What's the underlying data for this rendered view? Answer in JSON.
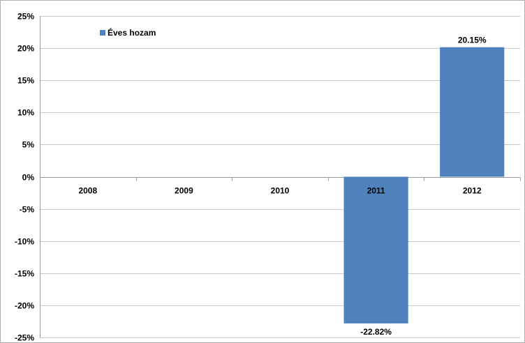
{
  "chart_data": {
    "type": "bar",
    "categories": [
      "2008",
      "2009",
      "2010",
      "2011",
      "2012"
    ],
    "series": [
      {
        "name": "Éves hozam",
        "values": [
          null,
          null,
          null,
          -22.82,
          20.15
        ],
        "color": "#4F81BD"
      }
    ],
    "data_labels": [
      "",
      "",
      "",
      "-22.82%",
      "20.15%"
    ],
    "ylim": [
      -25,
      25
    ],
    "yticks": [
      -25,
      -20,
      -15,
      -10,
      -5,
      0,
      5,
      10,
      15,
      20,
      25
    ],
    "ytick_labels": [
      "-25%",
      "-20%",
      "-15%",
      "-10%",
      "-5%",
      "0%",
      "5%",
      "10%",
      "15%",
      "20%",
      "25%"
    ],
    "grid": true,
    "legend": "top-left"
  }
}
